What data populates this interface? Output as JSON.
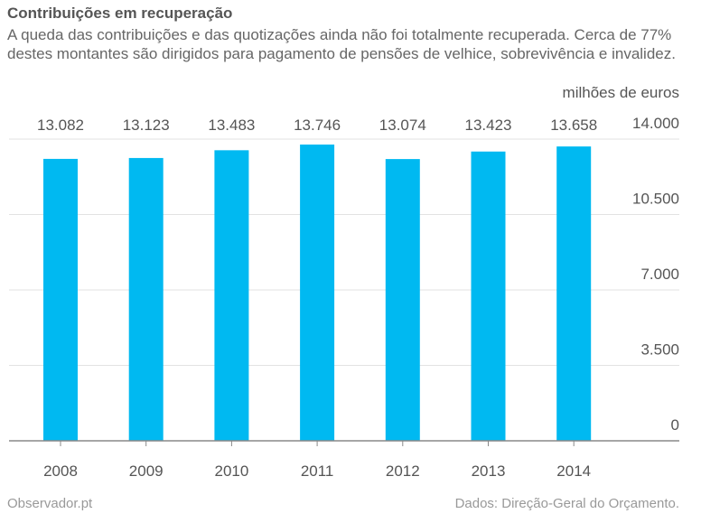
{
  "chart_data": {
    "type": "bar",
    "title": "Contribuições em recuperação",
    "subtitle": "A queda das contribuições e das quotizações ainda não foi totalmente recuperada. Cerca de 77% destes montantes são dirigidos para pagamento de pensões de velhice, sobrevivência e invalidez.",
    "unit_label": "milhões de euros",
    "categories": [
      "2008",
      "2009",
      "2010",
      "2011",
      "2012",
      "2013",
      "2014"
    ],
    "values": [
      13082,
      13123,
      13483,
      13746,
      13074,
      13423,
      13658
    ],
    "value_labels": [
      "13.082",
      "13.123",
      "13.483",
      "13.746",
      "13.074",
      "13.423",
      "13.658"
    ],
    "yticks": [
      0,
      3500,
      7000,
      10500,
      14000
    ],
    "ytick_labels": [
      "0",
      "3.500",
      "7.000",
      "10.500",
      "14.000"
    ],
    "ylim": [
      0,
      14000
    ],
    "grid": true,
    "bar_color": "#00b9f1"
  },
  "footer": {
    "source_left": "Observador.pt",
    "source_right": "Dados: Direção-Geral do Orçamento."
  }
}
